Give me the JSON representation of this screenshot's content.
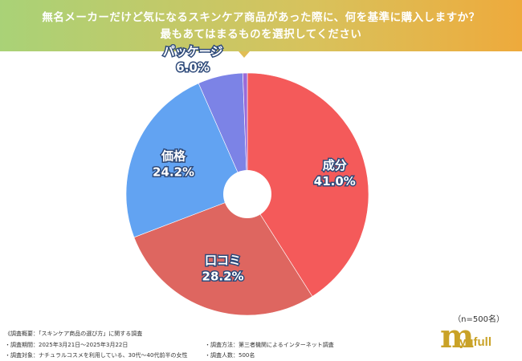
{
  "header": {
    "line1": "無名メーカーだけど気になるスキンケア商品があった際に、何を基準に購入しますか？",
    "line2": "最もあてはまるものを選択してください"
  },
  "chart_data": {
    "type": "pie",
    "title": "無名メーカーだけど気になるスキンケア商品があった際に、何を基準に購入しますか？ 最もあてはまるものを選択してください",
    "slices": [
      {
        "label": "成分",
        "value": 41.0,
        "display": "41.0%",
        "color": "#f45a5a"
      },
      {
        "label": "口コミ",
        "value": 28.2,
        "display": "28.2%",
        "color": "#de6660"
      },
      {
        "label": "価格",
        "value": 24.2,
        "display": "24.2%",
        "color": "#62a3f2"
      },
      {
        "label": "パッケージ",
        "value": 6.0,
        "display": "6.0%",
        "color": "#7c83e6"
      },
      {
        "label": "",
        "value": 0.6,
        "display": "",
        "color": "#9b6bd8"
      }
    ],
    "sample": "（n=500名）"
  },
  "footnotes": {
    "overview": "《調査概要：「スキンケア商品の選び方」に関する調査",
    "period": "・調査期間：2025年3月21日～2025年3月22日",
    "method": "・調査方法：第三者機関によるインターネット調査",
    "target": "・調査対象：ナチュラルコスメを利用している、30代～40代前半の女性",
    "count": "・調査人数：500名"
  },
  "brand": {
    "mark": "m",
    "name": "yufull",
    "color": "#c9a227"
  }
}
